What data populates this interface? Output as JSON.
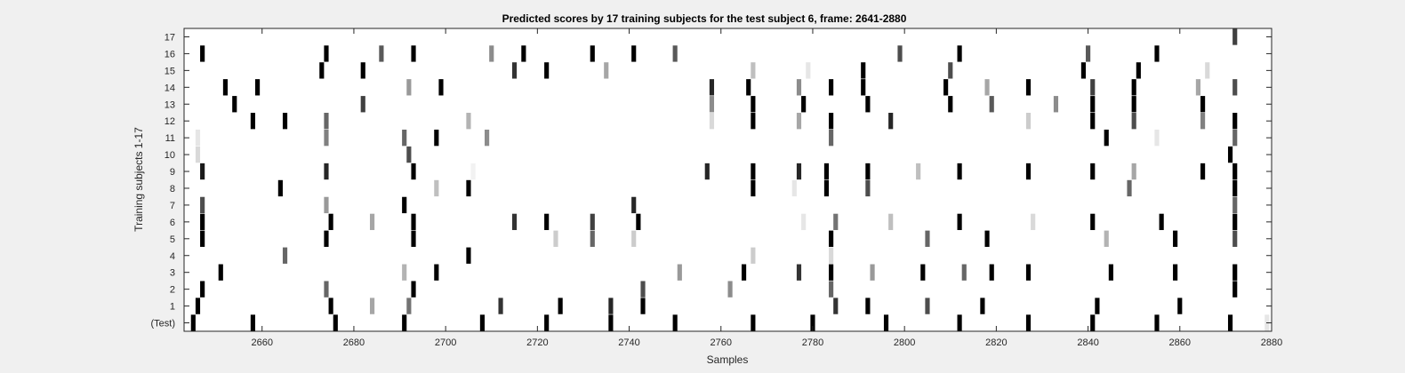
{
  "chart_data": {
    "type": "heatmap",
    "title": "Predicted scores by 17 training subjects for the test subject 6, frame: 2641-2880",
    "xlabel": "Samples",
    "ylabel": "Training subjects 1-17",
    "xlim": [
      2643,
      2880
    ],
    "x_ticks": [
      2660,
      2680,
      2700,
      2720,
      2740,
      2760,
      2780,
      2800,
      2820,
      2840,
      2860,
      2880
    ],
    "rows": [
      "(Test)",
      "1",
      "2",
      "3",
      "4",
      "5",
      "6",
      "7",
      "8",
      "9",
      "10",
      "11",
      "12",
      "13",
      "14",
      "15",
      "16",
      "17"
    ],
    "colormap": "gray, white = 0, black = 1",
    "grid": false,
    "legend": "none",
    "cells": [
      {
        "row": "(Test)",
        "marks": [
          [
            2645,
            1
          ],
          [
            2658,
            1
          ],
          [
            2676,
            1
          ],
          [
            2691,
            1
          ],
          [
            2708,
            1
          ],
          [
            2722,
            1
          ],
          [
            2736,
            1
          ],
          [
            2750,
            1
          ],
          [
            2767,
            1
          ],
          [
            2780,
            1
          ],
          [
            2796,
            1
          ],
          [
            2812,
            1
          ],
          [
            2827,
            1
          ],
          [
            2841,
            1
          ],
          [
            2855,
            1
          ],
          [
            2871,
            1
          ],
          [
            2879,
            0.1
          ]
        ]
      },
      {
        "row": "1",
        "marks": [
          [
            2646,
            1
          ],
          [
            2675,
            1
          ],
          [
            2684,
            0.35
          ],
          [
            2692,
            0.55
          ],
          [
            2712,
            0.8
          ],
          [
            2725,
            1
          ],
          [
            2736,
            0.85
          ],
          [
            2743,
            1
          ],
          [
            2785,
            0.8
          ],
          [
            2792,
            1
          ],
          [
            2805,
            0.7
          ],
          [
            2817,
            1
          ],
          [
            2842,
            1
          ],
          [
            2860,
            1
          ]
        ]
      },
      {
        "row": "2",
        "marks": [
          [
            2647,
            1
          ],
          [
            2674,
            0.6
          ],
          [
            2693,
            1
          ],
          [
            2743,
            0.7
          ],
          [
            2762,
            0.45
          ],
          [
            2784,
            0.6
          ],
          [
            2872,
            1
          ]
        ]
      },
      {
        "row": "3",
        "marks": [
          [
            2651,
            1
          ],
          [
            2691,
            0.3
          ],
          [
            2698,
            1
          ],
          [
            2751,
            0.4
          ],
          [
            2765,
            1
          ],
          [
            2777,
            0.8
          ],
          [
            2784,
            1
          ],
          [
            2793,
            0.4
          ],
          [
            2804,
            1
          ],
          [
            2813,
            0.6
          ],
          [
            2819,
            1
          ],
          [
            2827,
            1
          ],
          [
            2845,
            1
          ],
          [
            2859,
            1
          ],
          [
            2872,
            1
          ]
        ]
      },
      {
        "row": "4",
        "marks": [
          [
            2665,
            0.6
          ],
          [
            2705,
            1
          ],
          [
            2767,
            0.2
          ],
          [
            2784,
            0.15
          ]
        ]
      },
      {
        "row": "5",
        "marks": [
          [
            2647,
            1
          ],
          [
            2674,
            1
          ],
          [
            2693,
            1
          ],
          [
            2724,
            0.2
          ],
          [
            2732,
            0.6
          ],
          [
            2741,
            0.2
          ],
          [
            2784,
            1
          ],
          [
            2805,
            0.6
          ],
          [
            2818,
            1
          ],
          [
            2844,
            0.3
          ],
          [
            2859,
            1
          ],
          [
            2872,
            0.7
          ]
        ]
      },
      {
        "row": "6",
        "marks": [
          [
            2647,
            1
          ],
          [
            2675,
            1
          ],
          [
            2684,
            0.35
          ],
          [
            2693,
            1
          ],
          [
            2715,
            0.8
          ],
          [
            2722,
            1
          ],
          [
            2732,
            0.75
          ],
          [
            2742,
            1
          ],
          [
            2778,
            0.1
          ],
          [
            2785,
            0.55
          ],
          [
            2797,
            0.25
          ],
          [
            2812,
            1
          ],
          [
            2828,
            0.15
          ],
          [
            2841,
            1
          ],
          [
            2856,
            1
          ],
          [
            2872,
            1
          ]
        ]
      },
      {
        "row": "7",
        "marks": [
          [
            2647,
            0.7
          ],
          [
            2674,
            0.4
          ],
          [
            2691,
            1
          ],
          [
            2741,
            0.85
          ],
          [
            2872,
            0.6
          ]
        ]
      },
      {
        "row": "8",
        "marks": [
          [
            2664,
            1
          ],
          [
            2698,
            0.25
          ],
          [
            2705,
            1
          ],
          [
            2767,
            1
          ],
          [
            2776,
            0.1
          ],
          [
            2783,
            1
          ],
          [
            2792,
            0.7
          ],
          [
            2849,
            0.6
          ],
          [
            2872,
            1
          ]
        ]
      },
      {
        "row": "9",
        "marks": [
          [
            2647,
            0.9
          ],
          [
            2674,
            0.85
          ],
          [
            2693,
            1
          ],
          [
            2706,
            0.05
          ],
          [
            2757,
            0.85
          ],
          [
            2767,
            1
          ],
          [
            2777,
            0.85
          ],
          [
            2783,
            1
          ],
          [
            2792,
            1
          ],
          [
            2803,
            0.25
          ],
          [
            2812,
            1
          ],
          [
            2827,
            1
          ],
          [
            2841,
            1
          ],
          [
            2850,
            0.35
          ],
          [
            2865,
            1
          ],
          [
            2872,
            1
          ]
        ]
      },
      {
        "row": "10",
        "marks": [
          [
            2646,
            0.15
          ],
          [
            2692,
            0.7
          ],
          [
            2871,
            1
          ]
        ]
      },
      {
        "row": "11",
        "marks": [
          [
            2646,
            0.1
          ],
          [
            2674,
            0.5
          ],
          [
            2691,
            0.6
          ],
          [
            2698,
            1
          ],
          [
            2709,
            0.45
          ],
          [
            2784,
            0.6
          ],
          [
            2844,
            1
          ],
          [
            2855,
            0.1
          ],
          [
            2872,
            0.6
          ]
        ]
      },
      {
        "row": "12",
        "marks": [
          [
            2658,
            1
          ],
          [
            2665,
            1
          ],
          [
            2674,
            0.6
          ],
          [
            2705,
            0.3
          ],
          [
            2758,
            0.15
          ],
          [
            2767,
            1
          ],
          [
            2777,
            0.35
          ],
          [
            2784,
            1
          ],
          [
            2797,
            0.85
          ],
          [
            2827,
            0.2
          ],
          [
            2841,
            1
          ],
          [
            2850,
            0.7
          ],
          [
            2865,
            0.5
          ],
          [
            2872,
            1
          ]
        ]
      },
      {
        "row": "13",
        "marks": [
          [
            2654,
            1
          ],
          [
            2682,
            0.75
          ],
          [
            2758,
            0.45
          ],
          [
            2767,
            1
          ],
          [
            2778,
            1
          ],
          [
            2792,
            1
          ],
          [
            2810,
            1
          ],
          [
            2819,
            0.65
          ],
          [
            2833,
            0.45
          ],
          [
            2841,
            1
          ],
          [
            2850,
            1
          ],
          [
            2865,
            1
          ]
        ]
      },
      {
        "row": "14",
        "marks": [
          [
            2652,
            1
          ],
          [
            2659,
            1
          ],
          [
            2692,
            0.4
          ],
          [
            2699,
            1
          ],
          [
            2758,
            0.85
          ],
          [
            2766,
            1
          ],
          [
            2777,
            0.45
          ],
          [
            2784,
            1
          ],
          [
            2791,
            1
          ],
          [
            2809,
            1
          ],
          [
            2818,
            0.35
          ],
          [
            2827,
            1
          ],
          [
            2841,
            0.75
          ],
          [
            2850,
            1
          ],
          [
            2864,
            0.35
          ],
          [
            2872,
            0.7
          ]
        ]
      },
      {
        "row": "15",
        "marks": [
          [
            2673,
            1
          ],
          [
            2682,
            1
          ],
          [
            2715,
            0.8
          ],
          [
            2722,
            1
          ],
          [
            2735,
            0.35
          ],
          [
            2767,
            0.25
          ],
          [
            2779,
            0.1
          ],
          [
            2791,
            1
          ],
          [
            2810,
            0.7
          ],
          [
            2839,
            1
          ],
          [
            2851,
            1
          ],
          [
            2866,
            0.15
          ]
        ]
      },
      {
        "row": "16",
        "marks": [
          [
            2647,
            1
          ],
          [
            2674,
            1
          ],
          [
            2686,
            0.65
          ],
          [
            2693,
            1
          ],
          [
            2710,
            0.45
          ],
          [
            2717,
            1
          ],
          [
            2732,
            1
          ],
          [
            2741,
            1
          ],
          [
            2750,
            0.65
          ],
          [
            2799,
            0.7
          ],
          [
            2812,
            1
          ],
          [
            2840,
            0.65
          ],
          [
            2855,
            1
          ]
        ]
      },
      {
        "row": "17",
        "marks": [
          [
            2872,
            0.75
          ]
        ]
      }
    ]
  }
}
